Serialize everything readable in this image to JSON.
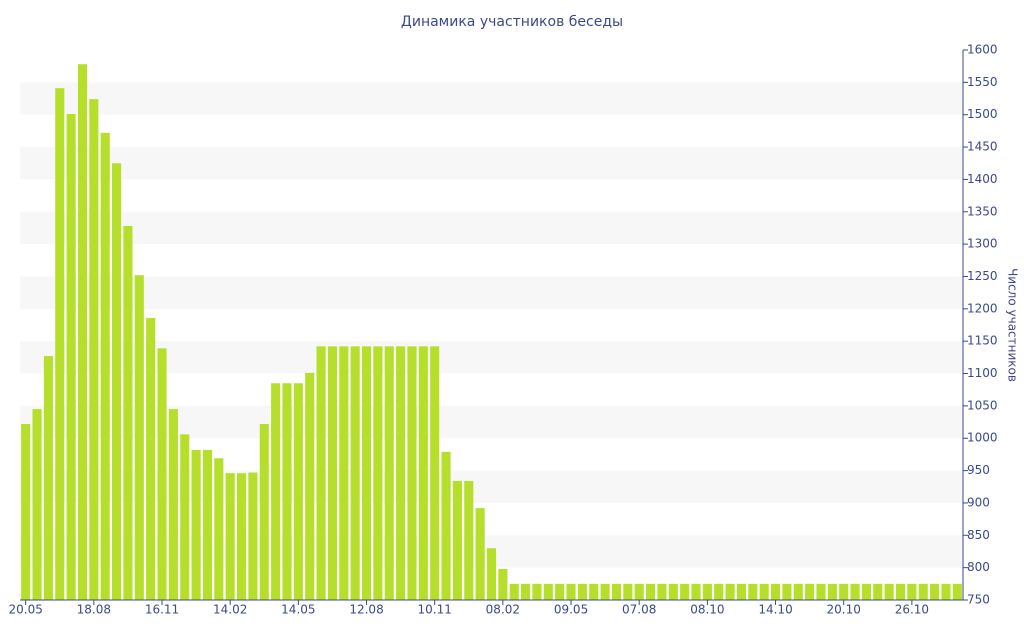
{
  "chart_data": {
    "type": "bar",
    "title": "Динамика участников беседы",
    "y_label": "Число участников",
    "categories": [
      "20.05",
      null,
      null,
      null,
      null,
      null,
      "18.08",
      null,
      null,
      null,
      null,
      null,
      "16.11",
      null,
      null,
      null,
      null,
      null,
      "14.02",
      null,
      null,
      null,
      null,
      null,
      "14.05",
      null,
      null,
      null,
      null,
      null,
      "12.08",
      null,
      null,
      null,
      null,
      null,
      "10.11",
      null,
      null,
      null,
      null,
      null,
      "08.02",
      null,
      null,
      null,
      null,
      null,
      "09.05",
      null,
      null,
      null,
      null,
      null,
      "07.08",
      null,
      null,
      null,
      null,
      null,
      "08.10",
      null,
      null,
      null,
      null,
      null,
      "14.10",
      null,
      null,
      null,
      null,
      null,
      "20.10",
      null,
      null,
      null,
      null,
      null,
      "26.10",
      null,
      null,
      null,
      null
    ],
    "values": [
      1022,
      1045,
      1127,
      1541,
      1501,
      1578,
      1524,
      1472,
      1425,
      1328,
      1252,
      1186,
      1139,
      1045,
      1006,
      982,
      982,
      969,
      946,
      946,
      947,
      1022,
      1085,
      1085,
      1085,
      1101,
      1142,
      1142,
      1142,
      1142,
      1142,
      1142,
      1142,
      1142,
      1142,
      1142,
      1142,
      979,
      934,
      934,
      892,
      830,
      798,
      775,
      775,
      775,
      775,
      775,
      775,
      775,
      775,
      775,
      775,
      775,
      775,
      775,
      775,
      775,
      775,
      775,
      775,
      775,
      775,
      775,
      775,
      775,
      775,
      775,
      775,
      775,
      775,
      775,
      775,
      775,
      775,
      775,
      775,
      775,
      775,
      775,
      775,
      775,
      775
    ],
    "color": "#b5df2a",
    "ylim": [
      750,
      1600
    ],
    "yticks": [
      750,
      800,
      850,
      900,
      950,
      1000,
      1050,
      1100,
      1150,
      1200,
      1250,
      1300,
      1350,
      1400,
      1450,
      1500,
      1550,
      1600
    ],
    "y_axis_side": "right",
    "grid": true
  }
}
